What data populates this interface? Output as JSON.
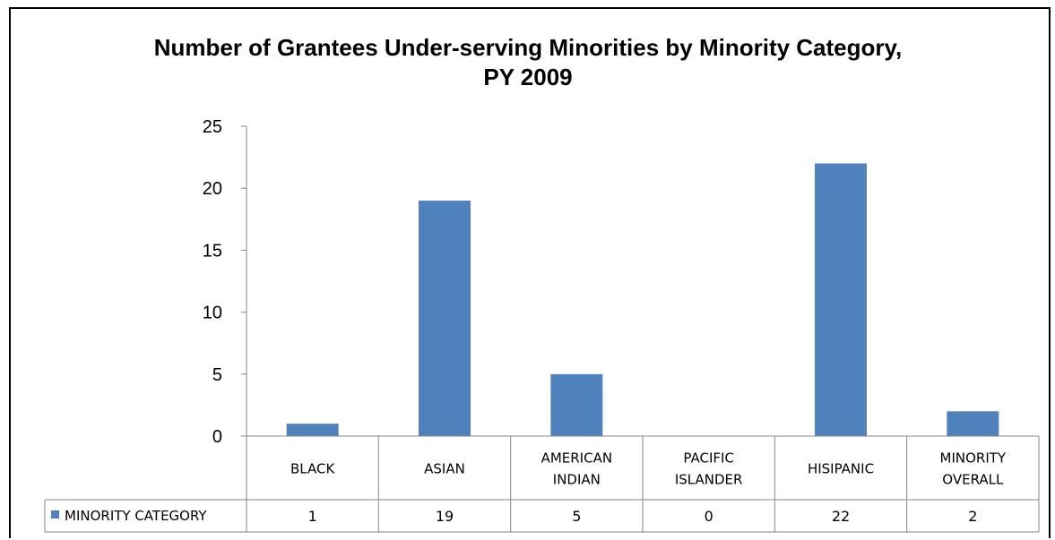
{
  "chart_data": {
    "type": "bar",
    "title_lines": [
      "Number of Grantees Under-serving Minorities by Minority Category,",
      "PY 2009"
    ],
    "categories": [
      [
        "BLACK"
      ],
      [
        "ASIAN"
      ],
      [
        "AMERICAN",
        "INDIAN"
      ],
      [
        "PACIFIC",
        "ISLANDER"
      ],
      [
        "HISIPANIC"
      ],
      [
        "MINORITY",
        "OVERALL"
      ]
    ],
    "series": [
      {
        "name": "MINORITY CATEGORY",
        "values": [
          1,
          19,
          5,
          0,
          22,
          2
        ],
        "color": "#4F81BD"
      }
    ],
    "ylim": [
      0,
      25
    ],
    "yticks": [
      0,
      5,
      10,
      15,
      20,
      25
    ],
    "grid": false,
    "legend": "data-table-left",
    "data_table": true
  }
}
